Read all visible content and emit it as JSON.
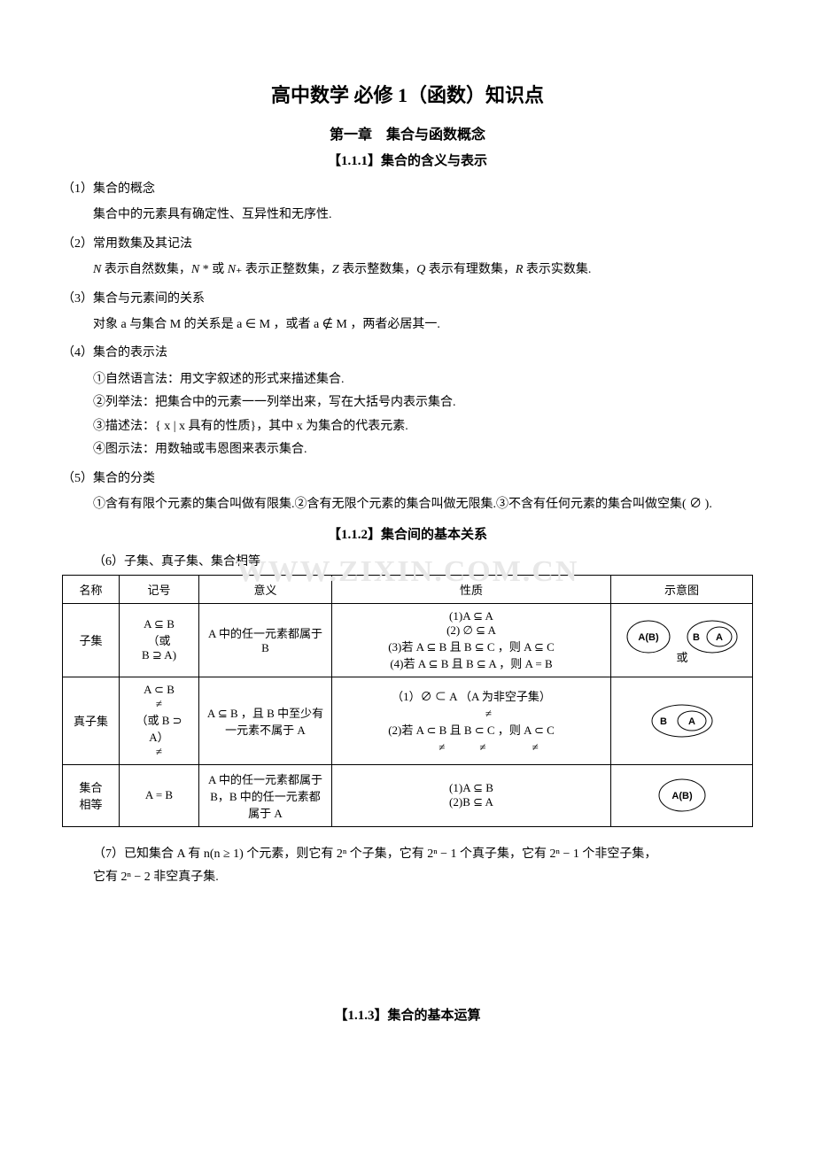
{
  "title": "高中数学 必修 1（函数）知识点",
  "chapter": "第一章　集合与函数概念",
  "section111": "【1.1.1】集合的含义与表示",
  "p1_label": "（1）集合的概念",
  "p1_text": "集合中的元素具有确定性、互异性和无序性.",
  "p2_label": "（2）常用数集及其记法",
  "p2_text_1": "N",
  "p2_text_2": " 表示自然数集，",
  "p2_text_3": "N",
  "p2_text_4": " * 或 ",
  "p2_text_5": "N",
  "p2_text_6": "₊ 表示正整数集，",
  "p2_text_7": "Z",
  "p2_text_8": " 表示整数集，",
  "p2_text_9": "Q",
  "p2_text_10": " 表示有理数集，",
  "p2_text_11": "R",
  "p2_text_12": " 表示实数集.",
  "p3_label": "（3）集合与元素间的关系",
  "p3_text": "对象 a 与集合 M 的关系是 a ∈ M ，或者 a ∉ M ，两者必居其一.",
  "p4_label": "（4）集合的表示法",
  "p4_1": "①自然语言法：用文字叙述的形式来描述集合.",
  "p4_2": "②列举法：把集合中的元素一一列举出来，写在大括号内表示集合.",
  "p4_3": "③描述法：{ x | x 具有的性质}，其中 x 为集合的代表元素.",
  "p4_4": "④图示法：用数轴或韦恩图来表示集合.",
  "p5_label": "（5）集合的分类",
  "p5_text": "①含有有限个元素的集合叫做有限集.②含有无限个元素的集合叫做无限集.③不含有任何元素的集合叫做空集( ∅ ).",
  "section112": "【1.1.2】集合间的基本关系",
  "p6_label": "（6）子集、真子集、集合相等",
  "watermark": "WWW.ZIXIN.COM.CN",
  "table": {
    "headers": [
      "名称",
      "记号",
      "意义",
      "性质",
      "示意图"
    ],
    "rows": [
      {
        "name": "子集",
        "symbol": "A ⊆ B\n（或\nB ⊇ A)",
        "meaning": "A 中的任一元素都属于 B",
        "props": "(1)A ⊆ A\n(2) ∅ ⊆ A\n(3)若 A ⊆ B 且 B ⊆ C ，则 A ⊆ C\n(4)若 A ⊆ B 且 B ⊆ A ，则 A = B",
        "diagram": "subset",
        "diag_caption": "或"
      },
      {
        "name": "真子集",
        "symbol": "A ⊂ B\n≠\n（或 B ⊃ A）\n≠",
        "meaning": "A ⊆ B ，且 B 中至少有一元素不属于 A",
        "props": "（1）∅ ⊂ A （A 为非空子集）\n　　　≠\n(2)若 A ⊂ B 且 B ⊂ C ，则 A ⊂ C\n　　　≠　　　≠　　　　≠",
        "diagram": "proper"
      },
      {
        "name": "集合\n相等",
        "symbol": "A = B",
        "meaning": "A 中的任一元素都属于 B，B 中的任一元素都属于 A",
        "props": "(1)A ⊆ B\n(2)B ⊆ A",
        "diagram": "equal"
      }
    ]
  },
  "p7_text": "（7）已知集合 A 有 n(n ≥ 1) 个元素，则它有 2ⁿ 个子集，它有 2ⁿ − 1 个真子集，它有 2ⁿ − 1 个非空子集，",
  "p7_text2": "它有 2ⁿ − 2 非空真子集.",
  "section113": "【1.1.3】集合的基本运算",
  "svg": {
    "stroke": "#000000",
    "fill": "#ffffff",
    "label_font": "bold 11px Arial"
  }
}
